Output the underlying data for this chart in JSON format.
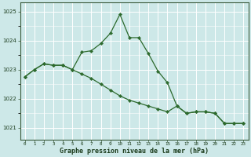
{
  "x": [
    0,
    1,
    2,
    3,
    4,
    5,
    6,
    7,
    8,
    9,
    10,
    11,
    12,
    13,
    14,
    15,
    16,
    17,
    18,
    19,
    20,
    21,
    22,
    23
  ],
  "y_peak": [
    1022.75,
    1023.0,
    1023.2,
    1023.15,
    1023.15,
    1023.0,
    1023.6,
    1023.65,
    1023.9,
    1024.25,
    1024.9,
    1024.1,
    1024.1,
    1023.55,
    1022.95,
    1022.55,
    1021.75,
    1021.5,
    1021.55,
    1021.55,
    1021.5,
    1021.15,
    1021.15,
    1021.15
  ],
  "y_diag": [
    1022.75,
    1023.0,
    1023.2,
    1023.15,
    1023.15,
    1023.0,
    1022.85,
    1022.7,
    1022.5,
    1022.3,
    1022.1,
    1021.95,
    1021.85,
    1021.75,
    1021.65,
    1021.55,
    1021.75,
    1021.5,
    1021.55,
    1021.55,
    1021.5,
    1021.15,
    1021.15,
    1021.15
  ],
  "line_color": "#2d6a2d",
  "bg_color": "#cde8e8",
  "grid_color_v": "#b8d8d8",
  "grid_color_h": "#b8d8d8",
  "xlabel": "Graphe pression niveau de la mer (hPa)",
  "ylim": [
    1020.6,
    1025.3
  ],
  "yticks": [
    1021,
    1022,
    1023,
    1024,
    1025
  ]
}
